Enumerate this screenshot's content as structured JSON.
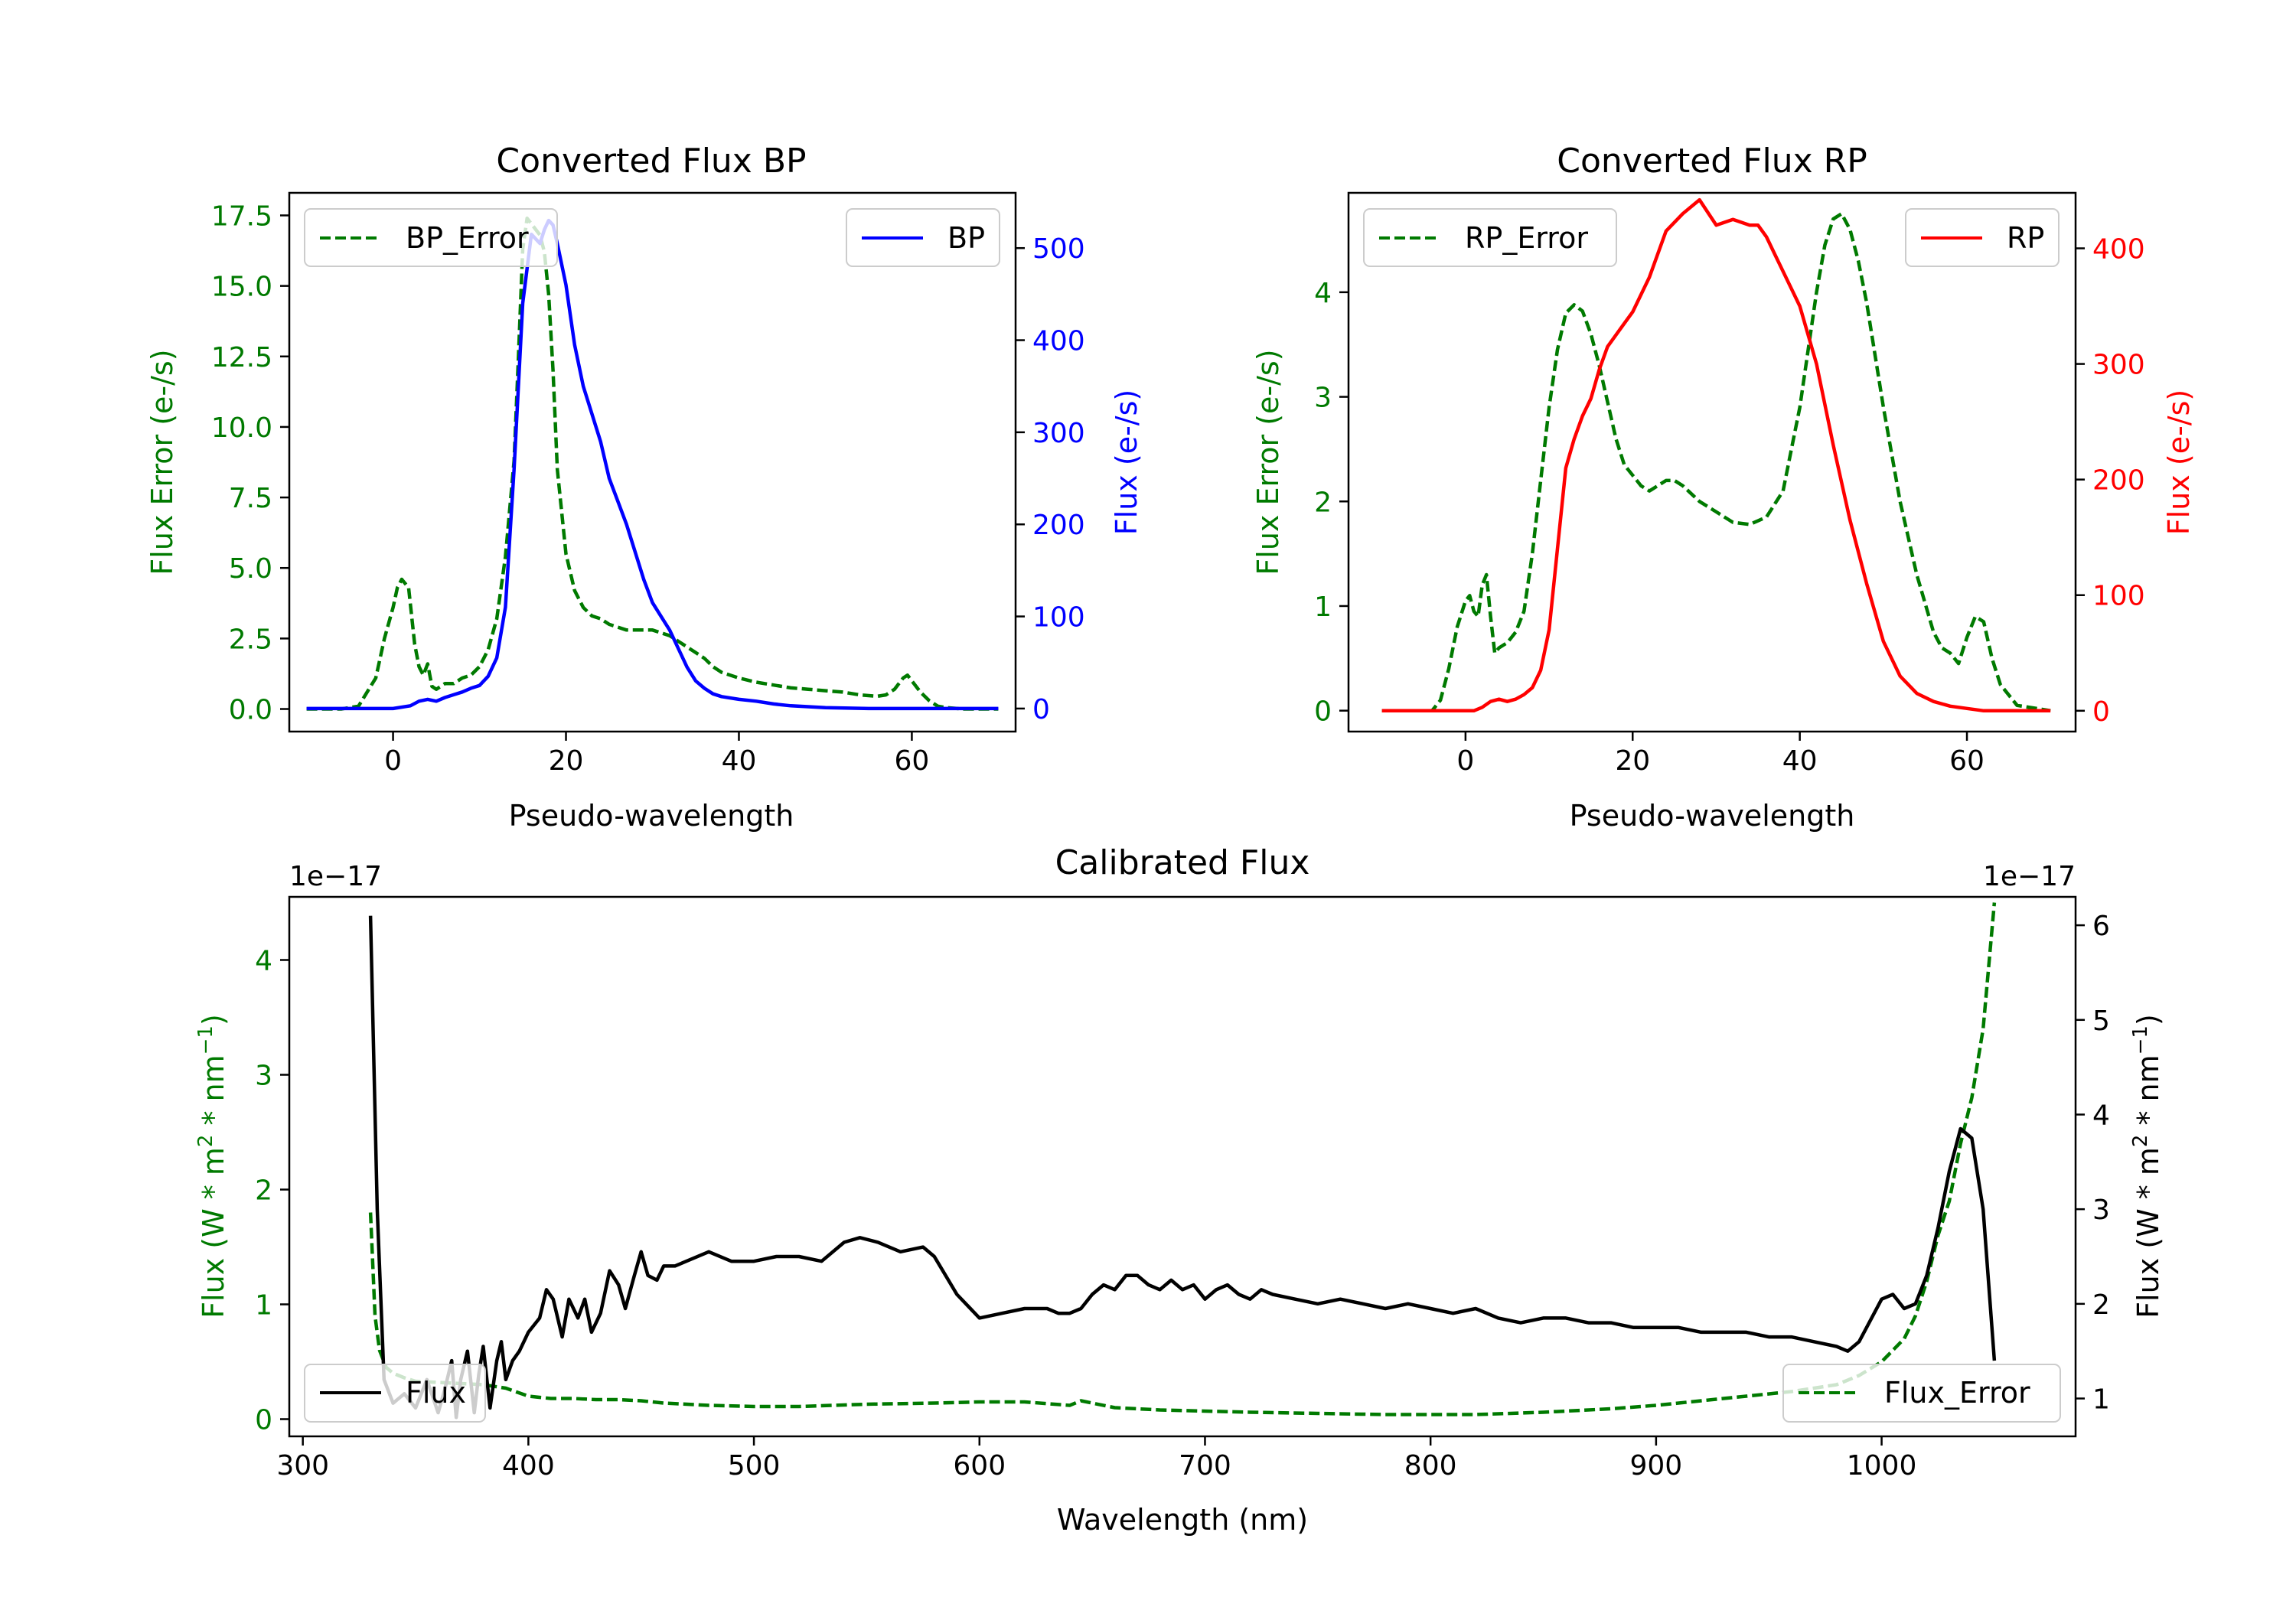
{
  "colors": {
    "bp": "#0000ff",
    "rp": "#ff0000",
    "error": "#007a00",
    "flux": "#000000",
    "axis": "#000000",
    "background": "#ffffff"
  },
  "chart_data": [
    {
      "type": "line",
      "title": "Converted Flux BP",
      "xlabel": "Pseudo-wavelength",
      "ylabel_left": "Flux Error (e-/s)",
      "ylabel_right": "Flux (e-/s)",
      "xlim": [
        -12,
        72
      ],
      "ylim_left": [
        -0.8,
        18.3
      ],
      "ylim_right": [
        -25,
        560
      ],
      "xticks": [
        "0",
        "20",
        "40",
        "60"
      ],
      "yticks_left": [
        "0.0",
        "2.5",
        "5.0",
        "7.5",
        "10.0",
        "12.5",
        "15.0",
        "17.5"
      ],
      "yticks_right": [
        "0",
        "100",
        "200",
        "300",
        "400",
        "500"
      ],
      "legend_left": "BP_Error",
      "legend_right": "BP",
      "series": [
        {
          "name": "BP_Error",
          "axis": "left",
          "style": "dashed",
          "color": "#007a00",
          "x": [
            -10,
            -6,
            -4,
            -2,
            -1,
            0,
            0.5,
            1,
            1.8,
            2.5,
            3,
            3.5,
            4,
            4.5,
            5,
            6,
            7,
            8,
            9,
            10,
            11,
            12,
            13,
            14,
            14.5,
            15,
            15.5,
            16,
            17,
            17.5,
            18,
            18.5,
            19,
            20,
            21,
            22,
            23,
            24,
            25,
            26,
            27,
            28,
            29,
            30,
            31,
            32,
            33,
            34,
            35,
            36,
            37,
            38,
            40,
            42,
            44,
            46,
            48,
            50,
            52,
            54,
            56,
            57,
            58,
            58.5,
            59,
            59.5,
            60,
            61,
            62,
            63,
            64,
            66,
            68,
            70
          ],
          "values": [
            0,
            0,
            0.1,
            1.1,
            2.5,
            3.6,
            4.3,
            4.6,
            4.3,
            2.3,
            1.5,
            1.2,
            1.6,
            0.8,
            0.7,
            0.9,
            0.9,
            1.1,
            1.2,
            1.5,
            2.1,
            3.2,
            5.4,
            8.8,
            12.5,
            16.3,
            17.4,
            17.2,
            16.8,
            16.2,
            14.7,
            12.0,
            8.5,
            5.5,
            4.2,
            3.6,
            3.3,
            3.2,
            3.0,
            2.9,
            2.8,
            2.8,
            2.8,
            2.8,
            2.7,
            2.6,
            2.4,
            2.2,
            2.0,
            1.8,
            1.5,
            1.3,
            1.1,
            0.95,
            0.85,
            0.75,
            0.7,
            0.65,
            0.6,
            0.5,
            0.45,
            0.5,
            0.7,
            0.9,
            1.1,
            1.2,
            1.0,
            0.6,
            0.3,
            0.1,
            0.05,
            0,
            0,
            0
          ]
        },
        {
          "name": "BP",
          "axis": "right",
          "style": "solid",
          "color": "#0000ff",
          "x": [
            -10,
            -5,
            0,
            2,
            3,
            4,
            5,
            6,
            7,
            8,
            9,
            10,
            11,
            12,
            13,
            14,
            15,
            16,
            17,
            17.5,
            18,
            18.5,
            19,
            20,
            21,
            22,
            23,
            24,
            25,
            26,
            27,
            28,
            29,
            30,
            31,
            32,
            33,
            34,
            35,
            36,
            37,
            38,
            40,
            42,
            44,
            46,
            48,
            50,
            55,
            60,
            65,
            70
          ],
          "values": [
            0,
            0,
            0,
            3,
            8,
            10,
            8,
            12,
            15,
            18,
            22,
            25,
            35,
            55,
            110,
            260,
            440,
            515,
            505,
            520,
            530,
            525,
            505,
            460,
            395,
            350,
            320,
            290,
            250,
            225,
            200,
            170,
            140,
            115,
            100,
            85,
            65,
            45,
            30,
            22,
            16,
            13,
            10,
            8,
            5,
            3,
            2,
            1,
            0,
            0,
            0,
            0
          ]
        }
      ]
    },
    {
      "type": "line",
      "title": "Converted Flux RP",
      "xlabel": "Pseudo-wavelength",
      "ylabel_left": "Flux Error (e-/s)",
      "ylabel_right": "Flux (e-/s)",
      "xlim": [
        -14,
        73
      ],
      "ylim_left": [
        -0.2,
        4.95
      ],
      "ylim_right": [
        -18,
        448
      ],
      "xticks": [
        "0",
        "20",
        "40",
        "60"
      ],
      "yticks_left": [
        "0",
        "1",
        "2",
        "3",
        "4"
      ],
      "yticks_right": [
        "0",
        "100",
        "200",
        "300",
        "400"
      ],
      "legend_left": "RP_Error",
      "legend_right": "RP",
      "series": [
        {
          "name": "RP_Error",
          "axis": "left",
          "style": "dashed",
          "color": "#007a00",
          "x": [
            -10,
            -4,
            -3,
            -2,
            -1,
            0,
            0.5,
            1,
            1.5,
            2,
            2.5,
            3,
            3.5,
            4,
            5,
            6,
            7,
            8,
            9,
            10,
            11,
            12,
            13,
            14,
            15,
            16,
            17,
            18,
            19,
            20,
            21,
            22,
            23,
            24,
            25,
            26,
            28,
            30,
            32,
            34,
            36,
            38,
            39,
            40,
            41,
            42,
            43,
            44,
            45,
            46,
            47,
            48,
            50,
            52,
            54,
            56,
            57,
            58,
            59,
            60,
            61,
            62,
            63,
            64,
            66,
            70
          ],
          "values": [
            0,
            0,
            0.1,
            0.4,
            0.8,
            1.05,
            1.1,
            0.95,
            0.9,
            1.2,
            1.3,
            0.9,
            0.55,
            0.6,
            0.65,
            0.75,
            0.95,
            1.5,
            2.2,
            2.9,
            3.45,
            3.8,
            3.88,
            3.82,
            3.6,
            3.3,
            2.95,
            2.6,
            2.35,
            2.25,
            2.15,
            2.1,
            2.15,
            2.2,
            2.2,
            2.15,
            2.0,
            1.9,
            1.8,
            1.78,
            1.85,
            2.1,
            2.5,
            2.9,
            3.45,
            4.0,
            4.45,
            4.7,
            4.75,
            4.6,
            4.3,
            3.9,
            2.9,
            2.0,
            1.3,
            0.75,
            0.6,
            0.55,
            0.45,
            0.7,
            0.9,
            0.85,
            0.5,
            0.25,
            0.05,
            0
          ]
        },
        {
          "name": "RP",
          "axis": "right",
          "style": "solid",
          "color": "#ff0000",
          "x": [
            -10,
            -5,
            0,
            1,
            2,
            3,
            4,
            5,
            6,
            7,
            8,
            9,
            10,
            11,
            12,
            13,
            14,
            15,
            16,
            17,
            18,
            19,
            20,
            22,
            24,
            26,
            28,
            30,
            32,
            34,
            35,
            36,
            37,
            38,
            40,
            42,
            44,
            46,
            48,
            50,
            52,
            54,
            56,
            58,
            60,
            62,
            64,
            66,
            68,
            70
          ],
          "values": [
            0,
            0,
            0,
            0,
            3,
            8,
            10,
            8,
            10,
            14,
            20,
            35,
            70,
            140,
            210,
            235,
            255,
            270,
            295,
            315,
            325,
            335,
            345,
            375,
            415,
            430,
            442,
            420,
            425,
            420,
            420,
            410,
            395,
            380,
            350,
            300,
            230,
            165,
            110,
            60,
            30,
            15,
            8,
            4,
            2,
            0,
            0,
            0,
            0,
            0
          ]
        }
      ]
    },
    {
      "type": "line",
      "title": "Calibrated Flux",
      "xlabel": "Wavelength (nm)",
      "ylabel_left": "Flux (W * m$^2$ * nm$^{-1}$)",
      "ylabel_right": "Flux (W * m$^2$ * nm$^{-1}$)",
      "offset_left": "1e−17",
      "offset_right": "1e−17",
      "xlim": [
        294,
        1086
      ],
      "ylim_left": [
        -0.15,
        4.55
      ],
      "ylim_right": [
        0.6,
        6.3
      ],
      "xticks": [
        "300",
        "400",
        "500",
        "600",
        "700",
        "800",
        "900",
        "1000"
      ],
      "yticks_left": [
        "0",
        "1",
        "2",
        "3",
        "4"
      ],
      "yticks_right": [
        "1",
        "2",
        "3",
        "4",
        "5",
        "6"
      ],
      "legend_left": "Flux",
      "legend_right": "Flux_Error",
      "series": [
        {
          "name": "Flux_Error",
          "axis": "left",
          "style": "dashed",
          "color": "#007a00",
          "x": [
            330,
            332,
            334,
            337,
            340,
            345,
            350,
            360,
            370,
            380,
            390,
            400,
            410,
            420,
            430,
            440,
            450,
            460,
            480,
            500,
            520,
            550,
            580,
            600,
            620,
            640,
            645,
            650,
            660,
            680,
            700,
            720,
            750,
            780,
            800,
            820,
            850,
            880,
            900,
            920,
            940,
            960,
            980,
            990,
            1000,
            1010,
            1015,
            1020,
            1025,
            1030,
            1035,
            1040,
            1045,
            1050
          ],
          "values": [
            1.8,
            0.9,
            0.6,
            0.45,
            0.4,
            0.36,
            0.33,
            0.32,
            0.31,
            0.3,
            0.27,
            0.2,
            0.18,
            0.18,
            0.17,
            0.17,
            0.16,
            0.14,
            0.12,
            0.11,
            0.11,
            0.13,
            0.14,
            0.15,
            0.15,
            0.12,
            0.16,
            0.14,
            0.1,
            0.08,
            0.07,
            0.06,
            0.05,
            0.04,
            0.04,
            0.04,
            0.06,
            0.09,
            0.12,
            0.16,
            0.2,
            0.24,
            0.3,
            0.38,
            0.5,
            0.7,
            0.9,
            1.2,
            1.6,
            1.9,
            2.4,
            2.8,
            3.4,
            4.5
          ]
        },
        {
          "name": "Flux",
          "axis": "right",
          "style": "solid",
          "color": "#000000",
          "x": [
            330,
            333,
            336,
            340,
            345,
            350,
            355,
            360,
            363,
            366,
            368,
            370,
            373,
            376,
            378,
            380,
            383,
            386,
            388,
            390,
            393,
            396,
            400,
            405,
            408,
            411,
            415,
            418,
            422,
            425,
            428,
            432,
            436,
            440,
            443,
            447,
            450,
            453,
            457,
            460,
            465,
            470,
            480,
            490,
            500,
            510,
            520,
            530,
            540,
            547,
            555,
            565,
            575,
            580,
            590,
            600,
            610,
            620,
            630,
            635,
            640,
            645,
            650,
            655,
            660,
            665,
            670,
            675,
            680,
            685,
            690,
            695,
            700,
            705,
            710,
            715,
            720,
            725,
            730,
            740,
            750,
            760,
            770,
            780,
            790,
            800,
            810,
            820,
            830,
            840,
            850,
            860,
            870,
            880,
            890,
            900,
            910,
            920,
            930,
            940,
            950,
            960,
            970,
            980,
            985,
            990,
            1000,
            1005,
            1010,
            1015,
            1020,
            1025,
            1030,
            1035,
            1040,
            1045,
            1050
          ],
          "values": [
            6.1,
            3.0,
            1.2,
            0.95,
            1.05,
            0.9,
            1.2,
            0.85,
            1.1,
            1.4,
            0.8,
            1.2,
            1.5,
            0.85,
            1.25,
            1.55,
            0.9,
            1.4,
            1.6,
            1.2,
            1.4,
            1.5,
            1.7,
            1.85,
            2.15,
            2.05,
            1.65,
            2.05,
            1.85,
            2.05,
            1.7,
            1.9,
            2.35,
            2.2,
            1.95,
            2.3,
            2.55,
            2.3,
            2.25,
            2.4,
            2.4,
            2.45,
            2.55,
            2.45,
            2.45,
            2.5,
            2.5,
            2.45,
            2.65,
            2.7,
            2.65,
            2.55,
            2.6,
            2.5,
            2.1,
            1.85,
            1.9,
            1.95,
            1.95,
            1.9,
            1.9,
            1.95,
            2.1,
            2.2,
            2.15,
            2.3,
            2.3,
            2.2,
            2.15,
            2.25,
            2.15,
            2.2,
            2.05,
            2.15,
            2.2,
            2.1,
            2.05,
            2.15,
            2.1,
            2.05,
            2.0,
            2.05,
            2.0,
            1.95,
            2.0,
            1.95,
            1.9,
            1.95,
            1.85,
            1.8,
            1.85,
            1.85,
            1.8,
            1.8,
            1.75,
            1.75,
            1.75,
            1.7,
            1.7,
            1.7,
            1.65,
            1.65,
            1.6,
            1.55,
            1.5,
            1.6,
            2.05,
            2.1,
            1.95,
            2.0,
            2.3,
            2.8,
            3.4,
            3.85,
            3.75,
            3.0,
            1.4
          ]
        }
      ]
    }
  ]
}
